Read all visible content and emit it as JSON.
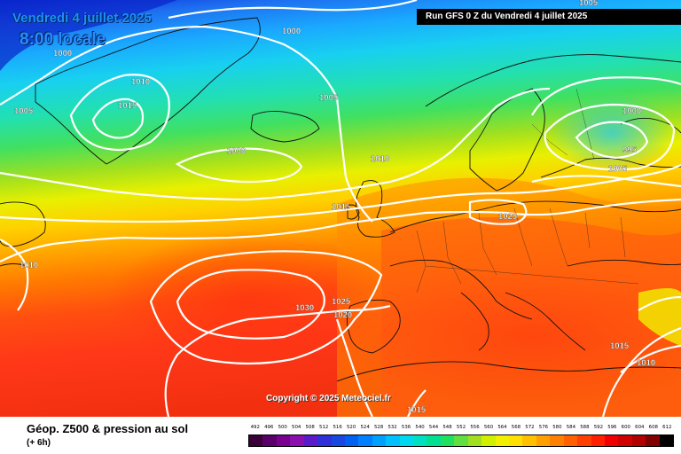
{
  "header": {
    "date": "Vendredi 4 juillet 2025",
    "time": "8:00 locale",
    "run": "Run GFS 0 Z du Vendredi 4 juillet 2025"
  },
  "copyright": "Copyright © 2025 Meteociel.fr",
  "legend": {
    "title": "Géop. Z500 & pression au sol",
    "subtitle": "(+ 6h)",
    "scale_values": [
      "492",
      "496",
      "500",
      "504",
      "508",
      "512",
      "516",
      "520",
      "524",
      "528",
      "532",
      "536",
      "540",
      "544",
      "548",
      "552",
      "556",
      "560",
      "564",
      "568",
      "572",
      "576",
      "580",
      "584",
      "588",
      "592",
      "596",
      "600",
      "604",
      "608",
      "612"
    ],
    "scale_colors": [
      "#3a0038",
      "#5a006a",
      "#7a0090",
      "#8a10b0",
      "#5a1cc8",
      "#3030d8",
      "#1848e0",
      "#0060f0",
      "#0080ff",
      "#00a0ff",
      "#00c0ff",
      "#00d8f0",
      "#00e0c0",
      "#00e090",
      "#20e060",
      "#60e040",
      "#a0e020",
      "#d0f000",
      "#f0f000",
      "#ffe000",
      "#ffc000",
      "#ffa000",
      "#ff8000",
      "#ff6000",
      "#ff4000",
      "#ff2000",
      "#f00000",
      "#d00000",
      "#b00000",
      "#800000",
      "#000000"
    ]
  },
  "isobars": [
    {
      "label": "1005",
      "kind": "top-center"
    },
    {
      "label": "1000",
      "kind": "greenland-west"
    },
    {
      "label": "1000",
      "kind": "greenland-north"
    },
    {
      "label": "1010",
      "kind": "greenland-inner"
    },
    {
      "label": "1015",
      "kind": "greenland-core"
    },
    {
      "label": "1005",
      "kind": "west-edge"
    },
    {
      "label": "1005",
      "kind": "mid-atlantic"
    },
    {
      "label": "1000",
      "kind": "low-center"
    },
    {
      "label": "1010",
      "kind": "north-sea"
    },
    {
      "label": "1015",
      "kind": "uk"
    },
    {
      "label": "1025",
      "kind": "germany"
    },
    {
      "label": "1000",
      "kind": "scandinavia-low"
    },
    {
      "label": "995",
      "kind": "scandinavia-core"
    },
    {
      "label": "1005",
      "kind": "scandinavia-outer"
    },
    {
      "label": "1010",
      "kind": "canada-west"
    },
    {
      "label": "1030",
      "kind": "azores-high"
    },
    {
      "label": "1025",
      "kind": "iberia-north"
    },
    {
      "label": "1020",
      "kind": "iberia"
    },
    {
      "label": "1015",
      "kind": "africa"
    },
    {
      "label": "1015",
      "kind": "east-med"
    },
    {
      "label": "1010",
      "kind": "east-edge"
    }
  ]
}
